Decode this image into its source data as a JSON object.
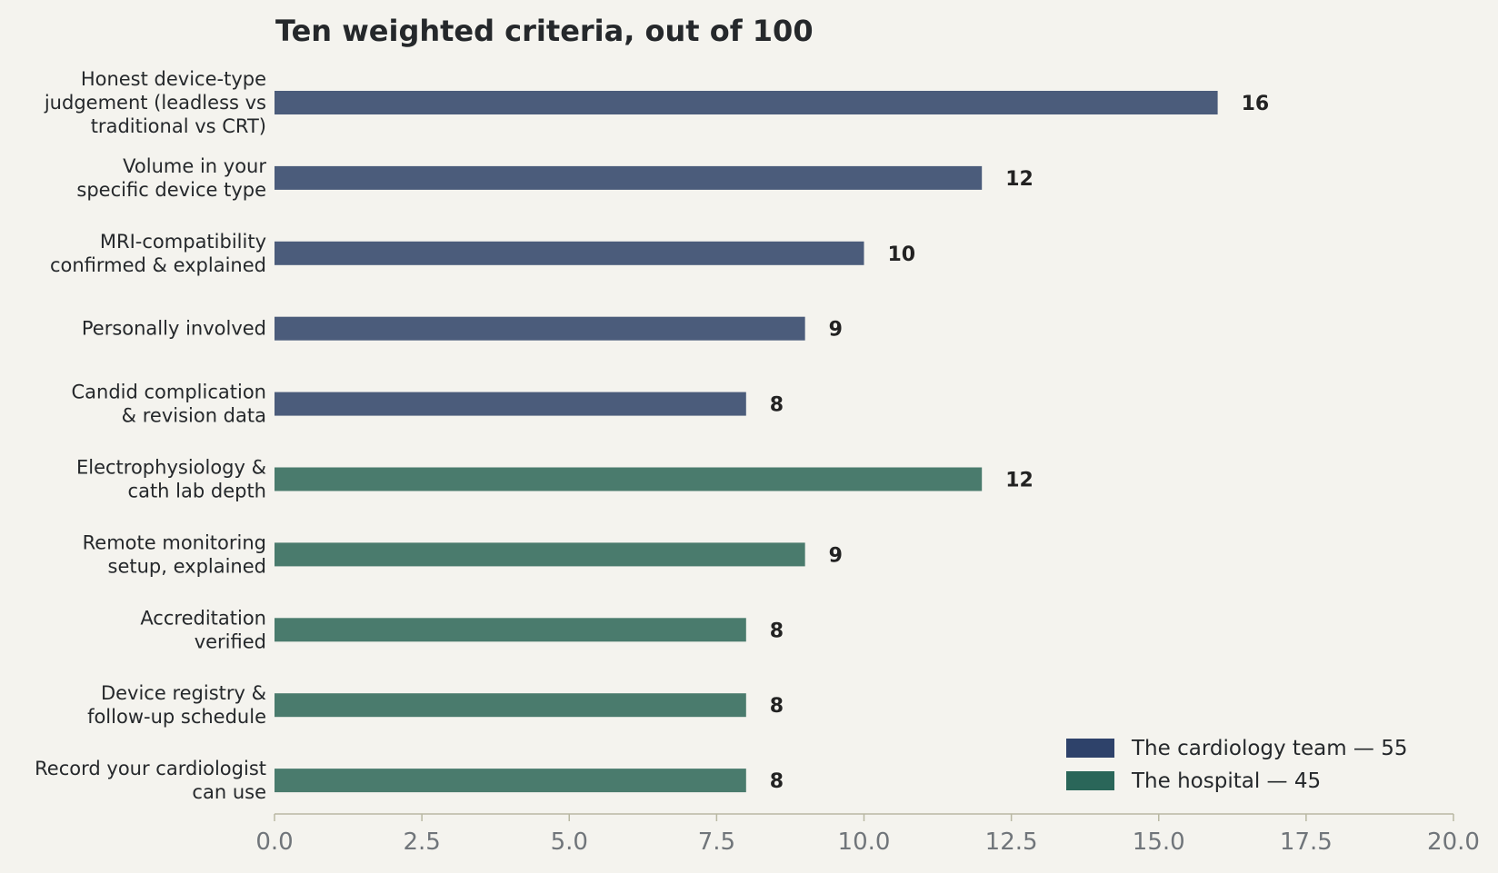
{
  "chart_data": {
    "type": "bar",
    "orientation": "horizontal",
    "title": "Ten weighted criteria, out of 100",
    "xlabel": "",
    "ylabel": "",
    "xlim": [
      0,
      20
    ],
    "x_ticks": [
      "0.0",
      "2.5",
      "5.0",
      "7.5",
      "10.0",
      "12.5",
      "15.0",
      "17.5",
      "20.0"
    ],
    "grid": false,
    "legend_position": "bottom-right",
    "categories": [
      [
        "Honest device-type",
        "judgement (leadless vs",
        "traditional vs CRT)"
      ],
      [
        "Volume in your",
        "specific device type"
      ],
      [
        "MRI-compatibility",
        "confirmed & explained"
      ],
      [
        "Personally involved"
      ],
      [
        "Candid complication",
        "& revision data"
      ],
      [
        "Electrophysiology &",
        "cath lab depth"
      ],
      [
        "Remote monitoring",
        "setup, explained"
      ],
      [
        "Accreditation",
        "verified"
      ],
      [
        "Device registry &",
        "follow-up schedule"
      ],
      [
        "Record your cardiologist",
        "can use"
      ]
    ],
    "values": [
      16,
      12,
      10,
      9,
      8,
      12,
      9,
      8,
      8,
      8
    ],
    "value_labels": [
      "16",
      "12",
      "10",
      "9",
      "8",
      "12",
      "9",
      "8",
      "8",
      "8"
    ],
    "groups": [
      0,
      0,
      0,
      0,
      0,
      1,
      1,
      1,
      1,
      1
    ],
    "series": [
      {
        "name": "The cardiology team — 55",
        "bar_color": "#4b5c7b",
        "legend_color": "#2e426a"
      },
      {
        "name": "The hospital — 45",
        "bar_color": "#4a7b6d",
        "legend_color": "#2a6659"
      }
    ],
    "colors": {
      "background": "#f4f3ee",
      "axis": "#b9b8a3"
    }
  }
}
